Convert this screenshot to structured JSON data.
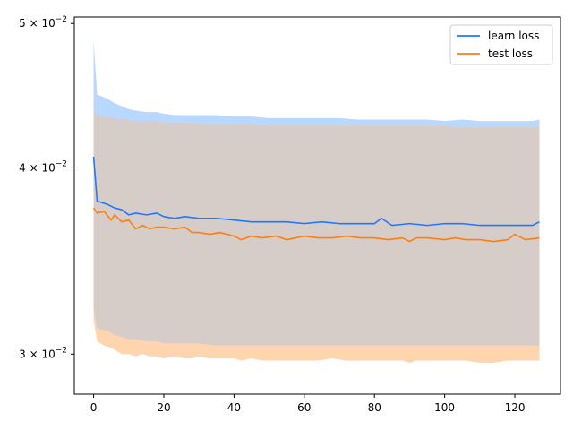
{
  "chart_data": {
    "type": "line",
    "title": "",
    "xlabel": "",
    "ylabel": "",
    "xlim": [
      -5.5,
      133
    ],
    "ylim": [
      0.0282,
      0.0505
    ],
    "yscale": "log",
    "grid": false,
    "legend_position": "top-right",
    "x_ticks": [
      0,
      20,
      40,
      60,
      80,
      100,
      120
    ],
    "x_tick_labels": [
      "0",
      "20",
      "40",
      "60",
      "80",
      "100",
      "120"
    ],
    "y_ticks": [
      0.03,
      0.04,
      0.05
    ],
    "y_tick_labels": [
      {
        "base": "3",
        "mult": " × 10",
        "exp": "−2"
      },
      {
        "base": "4",
        "mult": " × 10",
        "exp": "−2"
      },
      {
        "base": "5",
        "mult": " × 10",
        "exp": "−2"
      }
    ],
    "series": [
      {
        "name": "learn loss",
        "color": "#1f77ff",
        "band_color": "#b8d8ff",
        "x": [
          0,
          1,
          4,
          6,
          8,
          10,
          12,
          15,
          18,
          20,
          23,
          26,
          30,
          35,
          40,
          45,
          50,
          55,
          60,
          65,
          70,
          75,
          80,
          82,
          85,
          90,
          95,
          100,
          105,
          110,
          115,
          120,
          125,
          127
        ],
        "mean": [
          0.0407,
          0.038,
          0.0378,
          0.0376,
          0.0375,
          0.0372,
          0.0373,
          0.0372,
          0.0373,
          0.0371,
          0.037,
          0.0371,
          0.037,
          0.037,
          0.0369,
          0.0368,
          0.0368,
          0.0368,
          0.0367,
          0.0368,
          0.0367,
          0.0367,
          0.0367,
          0.037,
          0.0366,
          0.0367,
          0.0366,
          0.0367,
          0.0367,
          0.0366,
          0.0366,
          0.0366,
          0.0366,
          0.0368
        ],
        "upper": [
          0.0487,
          0.0448,
          0.0445,
          0.0442,
          0.044,
          0.0438,
          0.0437,
          0.0436,
          0.0436,
          0.0435,
          0.0434,
          0.0434,
          0.0434,
          0.0434,
          0.0433,
          0.0433,
          0.0432,
          0.0432,
          0.0432,
          0.0432,
          0.0432,
          0.0431,
          0.0431,
          0.0431,
          0.0431,
          0.0431,
          0.0431,
          0.043,
          0.0431,
          0.043,
          0.043,
          0.043,
          0.043,
          0.0431
        ],
        "lower": [
          0.0322,
          0.0312,
          0.0311,
          0.0309,
          0.0308,
          0.0307,
          0.0307,
          0.0306,
          0.0306,
          0.0305,
          0.0305,
          0.0305,
          0.0305,
          0.0304,
          0.0304,
          0.0304,
          0.0304,
          0.0304,
          0.0304,
          0.0304,
          0.0304,
          0.0304,
          0.0304,
          0.0304,
          0.0304,
          0.0304,
          0.0304,
          0.0304,
          0.0304,
          0.0304,
          0.0304,
          0.0304,
          0.0304,
          0.0304
        ]
      },
      {
        "name": "test loss",
        "color": "#ff7f0e",
        "band_color": "#ffd5b0",
        "x": [
          0,
          1,
          3,
          5,
          6,
          8,
          10,
          12,
          14,
          16,
          18,
          20,
          23,
          26,
          28,
          30,
          33,
          36,
          40,
          42,
          45,
          48,
          52,
          55,
          60,
          64,
          68,
          72,
          76,
          80,
          84,
          88,
          90,
          92,
          95,
          100,
          103,
          106,
          110,
          114,
          118,
          120,
          123,
          127
        ],
        "mean": [
          0.0376,
          0.0373,
          0.0374,
          0.0369,
          0.0372,
          0.0368,
          0.0369,
          0.0364,
          0.0366,
          0.0364,
          0.0365,
          0.0365,
          0.0364,
          0.0365,
          0.0362,
          0.0362,
          0.0361,
          0.0362,
          0.036,
          0.0358,
          0.036,
          0.0359,
          0.036,
          0.0358,
          0.036,
          0.0359,
          0.0359,
          0.036,
          0.0359,
          0.0359,
          0.0358,
          0.0359,
          0.0357,
          0.0359,
          0.0359,
          0.0358,
          0.0359,
          0.0358,
          0.0358,
          0.0357,
          0.0358,
          0.0361,
          0.0358,
          0.0359
        ],
        "upper": [
          0.0437,
          0.0434,
          0.0433,
          0.0432,
          0.0432,
          0.0431,
          0.0431,
          0.043,
          0.043,
          0.043,
          0.043,
          0.0429,
          0.0429,
          0.0429,
          0.0429,
          0.0428,
          0.0428,
          0.0428,
          0.0428,
          0.0428,
          0.0428,
          0.0427,
          0.0427,
          0.0427,
          0.0427,
          0.0427,
          0.0427,
          0.0427,
          0.0427,
          0.0427,
          0.0427,
          0.0427,
          0.0427,
          0.0427,
          0.0427,
          0.0427,
          0.0426,
          0.0426,
          0.0426,
          0.0426,
          0.0426,
          0.0426,
          0.0426,
          0.0426
        ],
        "lower": [
          0.0316,
          0.0306,
          0.0304,
          0.0303,
          0.0302,
          0.03,
          0.03,
          0.0299,
          0.03,
          0.0299,
          0.0299,
          0.0298,
          0.0299,
          0.0298,
          0.0298,
          0.0299,
          0.0298,
          0.0298,
          0.0298,
          0.0297,
          0.0298,
          0.0297,
          0.0297,
          0.0297,
          0.0297,
          0.0297,
          0.0298,
          0.0297,
          0.0297,
          0.0297,
          0.0297,
          0.0297,
          0.0296,
          0.0297,
          0.0297,
          0.0297,
          0.0297,
          0.0297,
          0.0296,
          0.0296,
          0.0297,
          0.0297,
          0.0297,
          0.0297
        ]
      }
    ],
    "overlap_band_color": "#d6cdc8"
  }
}
